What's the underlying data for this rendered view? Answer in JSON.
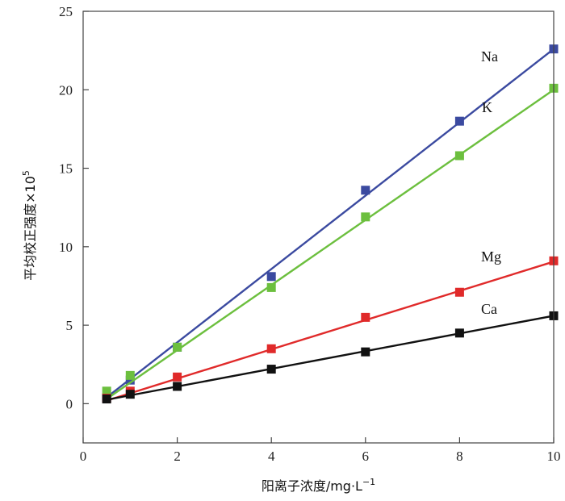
{
  "chart_data": {
    "type": "scatter",
    "xlabel": "阳离子浓度/mg·L",
    "xlabel_sup": "−1",
    "ylabel": "平均校正强度×10",
    "ylabel_sup": "5",
    "xlim": [
      0,
      10
    ],
    "ylim": [
      -2.5,
      25
    ],
    "xticks": [
      "0",
      "2",
      "4",
      "6",
      "8",
      "10"
    ],
    "yticks": [
      "0",
      "5",
      "10",
      "15",
      "20",
      "25"
    ],
    "x": [
      0.5,
      1,
      2,
      4,
      6,
      8,
      10
    ],
    "series": [
      {
        "name": "Na",
        "color": "#3b4aa0",
        "values": [
          0.4,
          1.5,
          3.6,
          8.1,
          13.6,
          18.0,
          22.6
        ],
        "fit": [
          0.4,
          22.6
        ]
      },
      {
        "name": "K",
        "color": "#6cbf3e",
        "values": [
          0.8,
          1.8,
          3.6,
          7.4,
          11.9,
          15.8,
          20.1
        ],
        "fit": [
          0.3,
          20.0
        ]
      },
      {
        "name": "Mg",
        "color": "#e02a2a",
        "values": [
          0.35,
          0.8,
          1.7,
          3.5,
          5.5,
          7.1,
          9.1
        ],
        "fit": [
          0.2,
          9.05
        ]
      },
      {
        "name": "Ca",
        "color": "#111111",
        "values": [
          0.3,
          0.6,
          1.1,
          2.2,
          3.3,
          4.5,
          5.6
        ],
        "fit": [
          0.25,
          5.6
        ]
      }
    ]
  }
}
